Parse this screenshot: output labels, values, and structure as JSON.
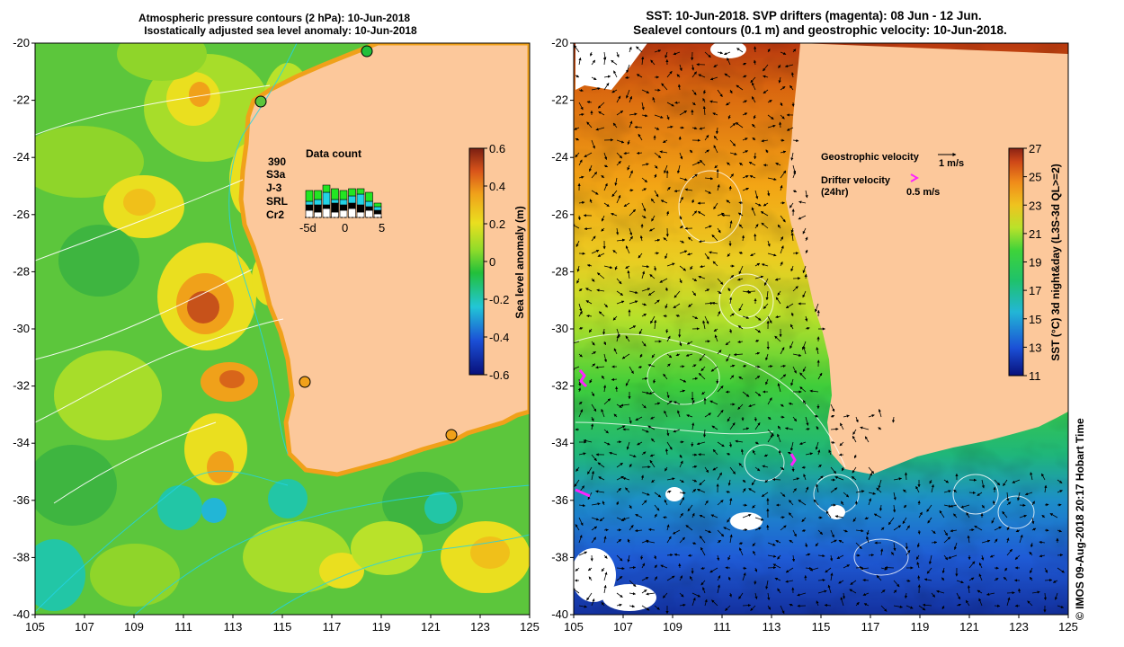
{
  "left_panel": {
    "title_line1": "Atmospheric pressure contours (2 hPa): 10-Jun-2018",
    "title_line2": "Isostatically adjusted sea level anomaly: 10-Jun-2018",
    "y_ticks": [
      "-20",
      "-22",
      "-24",
      "-26",
      "-28",
      "-30",
      "-32",
      "-34",
      "-36",
      "-38",
      "-40"
    ],
    "x_ticks": [
      "105",
      "107",
      "109",
      "111",
      "113",
      "115",
      "117",
      "119",
      "121",
      "123",
      "125"
    ],
    "colorbar": {
      "label": "Sea level anomaly (m)",
      "ticks": [
        "0.6",
        "0.4",
        "0.2",
        "0",
        "-0.2",
        "-0.4",
        "-0.6"
      ],
      "range": [
        -0.6,
        0.6
      ]
    },
    "data_count": {
      "title": "Data count",
      "total": "390",
      "satellites": [
        {
          "name": "S3a",
          "color": "#ffffff"
        },
        {
          "name": "J-3",
          "color": "#000000"
        },
        {
          "name": "SRL",
          "color": "#22d3e6"
        },
        {
          "name": "Cr2",
          "color": "#22e622"
        }
      ],
      "x_ticks": [
        "-5d",
        "0",
        "5"
      ]
    }
  },
  "right_panel": {
    "title_line1": "SST: 10-Jun-2018. SVP drifters (magenta): 08 Jun - 12 Jun.",
    "title_line2": "Sealevel contours (0.1 m) and geostrophic velocity: 10-Jun-2018.",
    "y_ticks": [
      "-20",
      "-22",
      "-24",
      "-26",
      "-28",
      "-30",
      "-32",
      "-34",
      "-36",
      "-38",
      "-40"
    ],
    "x_ticks": [
      "105",
      "107",
      "109",
      "111",
      "113",
      "115",
      "117",
      "119",
      "121",
      "123",
      "125"
    ],
    "colorbar": {
      "label": "SST (°C) 3d night&day (L3S-3d QL>=2)",
      "ticks": [
        "27",
        "25",
        "23",
        "21",
        "19",
        "17",
        "15",
        "13",
        "11"
      ],
      "range": [
        11,
        27
      ]
    },
    "legend": {
      "geo_label": "Geostrophic velocity",
      "geo_scale": "1 m/s",
      "drifter_label": "Drifter velocity",
      "drifter_sub": "(24hr)",
      "drifter_scale": "0.5 m/s"
    },
    "footer": "© IMOS 09-Aug-2018 20:17 Hobart Time"
  },
  "colors": {
    "land": "#fcc89b",
    "drifter": "#ff22ff"
  }
}
